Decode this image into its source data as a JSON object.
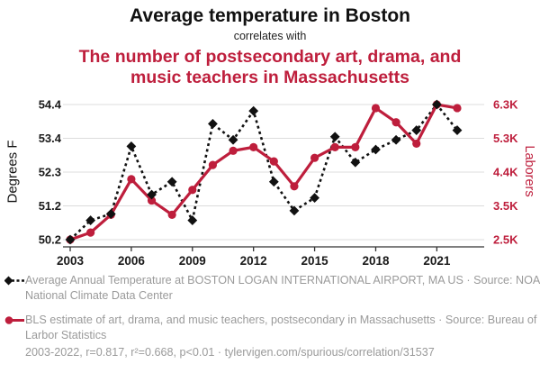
{
  "header": {
    "title": "Average temperature in Boston",
    "connector": "correlates with",
    "subtitle": "The number of postsecondary art, drama, and music teachers in Massachusetts"
  },
  "colors": {
    "accent_red": "#be1e3c",
    "series_black": "#111111",
    "grid": "#dcdcdc",
    "axis": "#333333",
    "muted_text": "#9a9a9a"
  },
  "chart_data": {
    "type": "line",
    "x": [
      2003,
      2004,
      2005,
      2006,
      2007,
      2008,
      2009,
      2010,
      2011,
      2012,
      2013,
      2014,
      2015,
      2016,
      2017,
      2018,
      2019,
      2020,
      2021,
      2022
    ],
    "x_ticks": [
      2003,
      2006,
      2009,
      2012,
      2015,
      2018,
      2021
    ],
    "series": [
      {
        "name": "Average Annual Temperature at BOSTON LOGAN INTERNATIONAL AIRPORT, MA US",
        "axis": "left",
        "marker": "diamond",
        "line": "dashed",
        "color": "#111111",
        "values": [
          50.2,
          50.8,
          51.0,
          53.1,
          51.6,
          52.0,
          50.8,
          53.8,
          53.3,
          54.2,
          52.0,
          51.1,
          51.5,
          53.4,
          52.6,
          53.0,
          53.3,
          53.6,
          54.4,
          53.6
        ]
      },
      {
        "name": "BLS estimate of art, drama, and music teachers, postsecondary in Massachusetts (thousands)",
        "axis": "right",
        "marker": "circle",
        "line": "solid",
        "color": "#be1e3c",
        "values": [
          2.5,
          2.7,
          3.2,
          4.2,
          3.6,
          3.2,
          3.9,
          4.6,
          5.0,
          5.1,
          4.7,
          4.0,
          4.8,
          5.1,
          5.1,
          6.2,
          5.8,
          5.2,
          6.3,
          6.2
        ]
      }
    ],
    "left_axis": {
      "label": "Degrees F",
      "ticks": [
        "54.4",
        "53.4",
        "52.3",
        "51.2",
        "50.2"
      ],
      "range": [
        50.2,
        54.4
      ]
    },
    "right_axis": {
      "label": "Laborers",
      "ticks": [
        "6.3K",
        "5.3K",
        "4.4K",
        "3.5K",
        "2.5K"
      ],
      "range": [
        2.5,
        6.3
      ]
    },
    "grid": true,
    "legend_position": "bottom"
  },
  "legend": {
    "item1": "Average Annual Temperature at BOSTON LOGAN INTERNATIONAL AIRPORT, MA US · Source: NOAA National Climate Data Center",
    "item2": "BLS estimate of art, drama, and music teachers, postsecondary in Massachusetts · Source: Bureau of Larbor Statistics"
  },
  "footer": {
    "text": "2003-2022, r=0.817, r²=0.668, p<0.01 · tylervigen.com/spurious/correlation/31537"
  }
}
